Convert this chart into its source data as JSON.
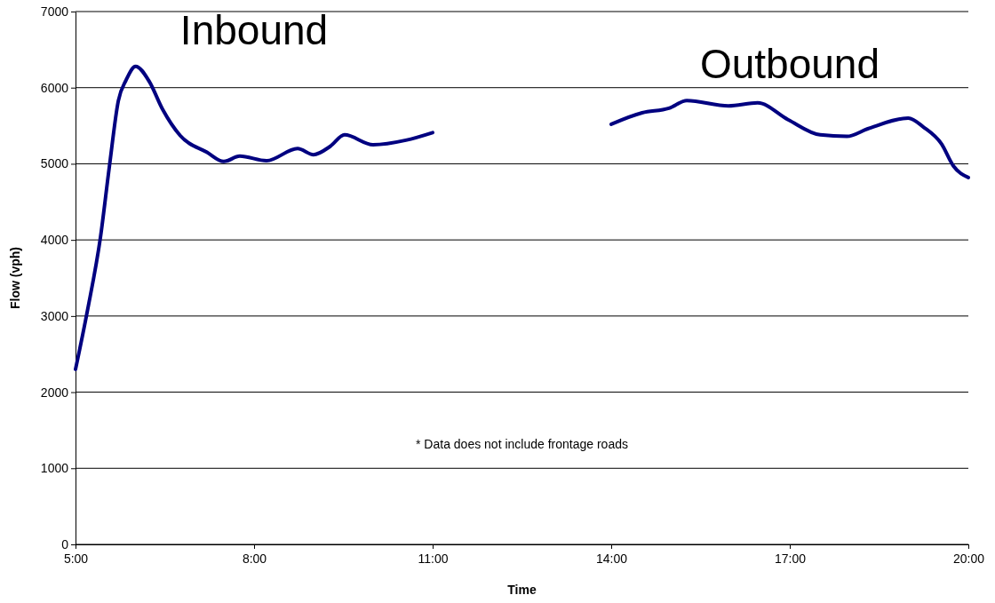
{
  "chart_data": {
    "type": "line",
    "xlabel": "Time",
    "ylabel": "Flow (vph)",
    "xlim": [
      5,
      20
    ],
    "xticks": [
      {
        "value": 5,
        "label": "5:00"
      },
      {
        "value": 8,
        "label": "8:00"
      },
      {
        "value": 11,
        "label": "11:00"
      },
      {
        "value": 14,
        "label": "14:00"
      },
      {
        "value": 17,
        "label": "17:00"
      },
      {
        "value": 20,
        "label": "20:00"
      }
    ],
    "ylim": [
      0,
      7000
    ],
    "yticks": [
      0,
      1000,
      2000,
      3000,
      4000,
      5000,
      6000,
      7000
    ],
    "grid": "y",
    "legend": false,
    "marker": "none",
    "line_style": "solid",
    "series": [
      {
        "name": "Inbound",
        "color": "#000080",
        "x": [
          5.0,
          5.2,
          5.42,
          5.57,
          5.72,
          5.85,
          6.01,
          6.24,
          6.46,
          6.76,
          7.21,
          7.49,
          7.76,
          8.21,
          8.73,
          9.0,
          9.28,
          9.52,
          10.0,
          10.55,
          11.0
        ],
        "values": [
          2300,
          3070,
          4040,
          4970,
          5830,
          6100,
          6280,
          6080,
          5720,
          5370,
          5150,
          5030,
          5100,
          5040,
          5200,
          5120,
          5230,
          5380,
          5250,
          5310,
          5410
        ]
      },
      {
        "name": "Outbound",
        "color": "#000080",
        "x": [
          14.0,
          14.52,
          14.97,
          15.27,
          15.97,
          16.46,
          16.97,
          17.51,
          17.96,
          18.31,
          18.99,
          19.25,
          19.55,
          19.75,
          20.0
        ],
        "values": [
          5520,
          5670,
          5730,
          5830,
          5760,
          5800,
          5580,
          5380,
          5360,
          5460,
          5600,
          5480,
          5260,
          4970,
          4820
        ]
      }
    ],
    "annotations": [
      "* Data does not include frontage roads"
    ]
  }
}
